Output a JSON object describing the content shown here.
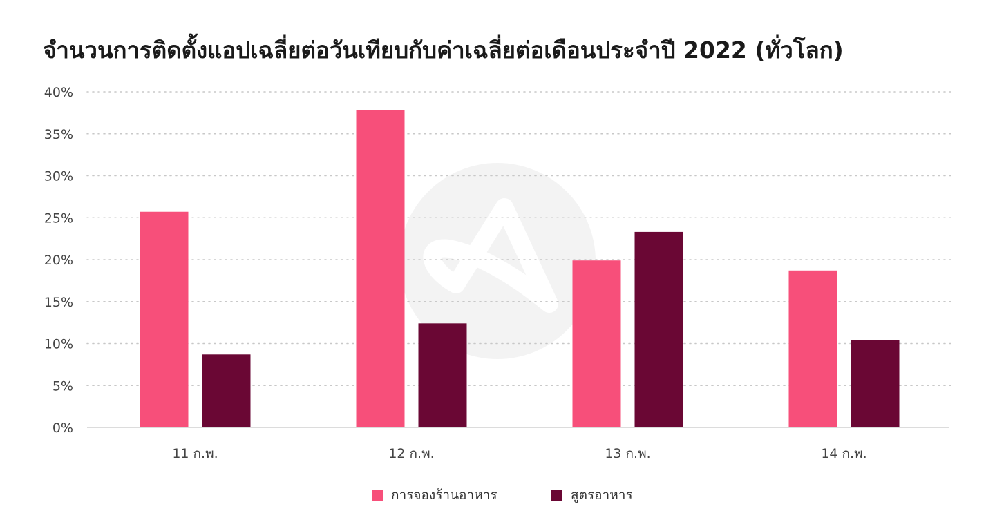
{
  "title": "จำนวนการติดตั้งแอปเฉลี่ยต่อวันเทียบกับค่าเฉลี่ยต่อเดือนประจำปี 2022 (ทั่วโลก)",
  "chart_data": {
    "type": "bar",
    "categories": [
      "11 ก.พ.",
      "12 ก.พ.",
      "13 ก.พ.",
      "14 ก.พ."
    ],
    "series": [
      {
        "name": "การจองร้านอาหาร",
        "color": "#f74f7a",
        "values": [
          25.7,
          37.8,
          19.9,
          18.7
        ]
      },
      {
        "name": "สูตรอาหาร",
        "color": "#6a0734",
        "values": [
          8.7,
          12.4,
          23.3,
          10.4
        ]
      }
    ],
    "ylim": [
      0,
      40
    ],
    "yticks": [
      0,
      5,
      10,
      15,
      20,
      25,
      30,
      35,
      40
    ],
    "ytick_labels": [
      "0%",
      "5%",
      "10%",
      "15%",
      "20%",
      "25%",
      "30%",
      "35%",
      "40%"
    ],
    "grid": true,
    "legend_position": "bottom"
  }
}
